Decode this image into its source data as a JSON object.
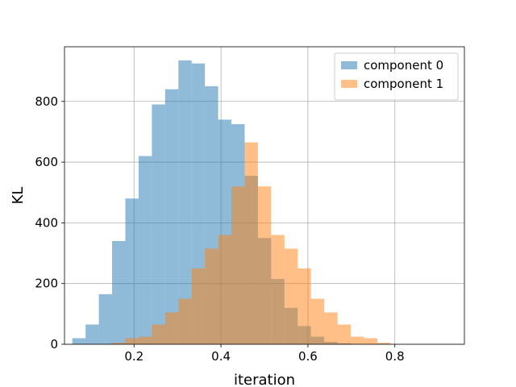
{
  "chart_data": {
    "type": "bar",
    "subtype": "overlapping-histogram",
    "title": "",
    "xlabel": "iteration",
    "ylabel": "KL",
    "xlim": [
      0.04,
      0.96
    ],
    "ylim": [
      0,
      980
    ],
    "xticks": [
      0.2,
      0.4,
      0.6,
      0.8
    ],
    "yticks": [
      0,
      200,
      400,
      600,
      800
    ],
    "xtick_labels": [
      "0.2",
      "0.4",
      "0.6",
      "0.8"
    ],
    "ytick_labels": [
      "0",
      "200",
      "400",
      "600",
      "800"
    ],
    "grid": true,
    "legend_position": "top-right",
    "series": [
      {
        "name": "component 0",
        "color": "#1f77b4",
        "alpha": 0.5,
        "bin_edges": [
          0.058,
          0.0885,
          0.119,
          0.1495,
          0.18,
          0.2105,
          0.241,
          0.2715,
          0.302,
          0.3325,
          0.363,
          0.3935,
          0.424,
          0.4545,
          0.485,
          0.5155,
          0.546,
          0.5765,
          0.607,
          0.6375,
          0.668,
          0.6985,
          0.729,
          0.7595,
          0.79,
          0.8205,
          0.851,
          0.8815,
          0.912,
          0.9425
        ],
        "counts": [
          20,
          65,
          165,
          340,
          480,
          620,
          790,
          840,
          935,
          925,
          850,
          740,
          725,
          555,
          350,
          215,
          120,
          60,
          25,
          8,
          3,
          0,
          0,
          0,
          0,
          0,
          0,
          0,
          0
        ]
      },
      {
        "name": "component 1",
        "color": "#ff7f0e",
        "alpha": 0.5,
        "bin_edges": [
          0.058,
          0.0885,
          0.119,
          0.1495,
          0.18,
          0.2105,
          0.241,
          0.2715,
          0.302,
          0.3325,
          0.363,
          0.3935,
          0.424,
          0.4545,
          0.485,
          0.5155,
          0.546,
          0.5765,
          0.607,
          0.6375,
          0.668,
          0.6985,
          0.729,
          0.7595,
          0.79,
          0.8205,
          0.851,
          0.8815,
          0.912,
          0.9425
        ],
        "counts": [
          0,
          0,
          0,
          5,
          20,
          25,
          65,
          105,
          150,
          250,
          315,
          360,
          520,
          665,
          520,
          360,
          315,
          250,
          150,
          105,
          65,
          25,
          20,
          5,
          0,
          0,
          0,
          0,
          0
        ]
      }
    ]
  }
}
